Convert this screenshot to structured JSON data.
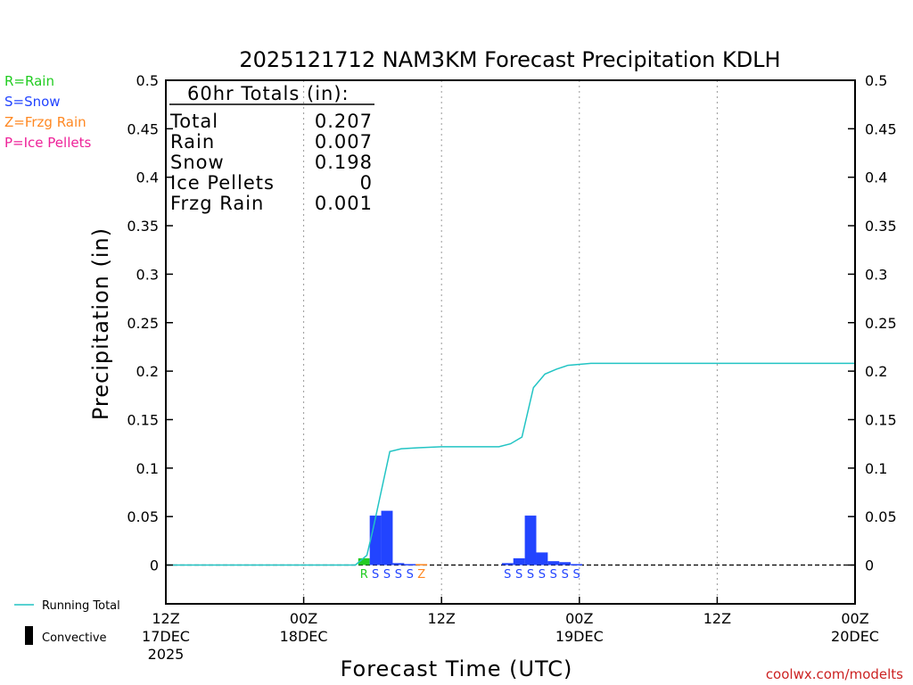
{
  "chart_data": {
    "type": "bar",
    "title": "2025121712 NAM3KM Forecast Precipitation KDLH",
    "xlabel": "Forecast Time (UTC)",
    "ylabel": "Precipitation (in)",
    "ylim": [
      -0.04,
      0.5
    ],
    "yticks": [
      0,
      0.05,
      0.1,
      0.15,
      0.2,
      0.25,
      0.3,
      0.35,
      0.4,
      0.45,
      0.5
    ],
    "ytick_labels": [
      "0",
      "0.05",
      "0.1",
      "0.15",
      "0.2",
      "0.25",
      "0.3",
      "0.35",
      "0.4",
      "0.45",
      "0.5"
    ],
    "xlim_hours": [
      0,
      60
    ],
    "xticks": [
      {
        "hour": 0,
        "line1": "12Z",
        "line2": "17DEC",
        "line3": "2025"
      },
      {
        "hour": 12,
        "line1": "00Z",
        "line2": "18DEC",
        "line3": ""
      },
      {
        "hour": 24,
        "line1": "12Z",
        "line2": "",
        "line3": ""
      },
      {
        "hour": 36,
        "line1": "00Z",
        "line2": "19DEC",
        "line3": ""
      },
      {
        "hour": 48,
        "line1": "12Z",
        "line2": "",
        "line3": ""
      },
      {
        "hour": 60,
        "line1": "00Z",
        "line2": "20DEC",
        "line3": ""
      }
    ],
    "grid_vertical_hours": [
      12,
      24,
      36,
      48
    ],
    "bars": [
      {
        "hour": 17.25,
        "value": 0.007,
        "type": "R",
        "color": "#22cc22"
      },
      {
        "hour": 18.25,
        "value": 0.051,
        "type": "S",
        "color": "#2244ff"
      },
      {
        "hour": 19.25,
        "value": 0.056,
        "type": "S",
        "color": "#2244ff"
      },
      {
        "hour": 20.25,
        "value": 0.002,
        "type": "S",
        "color": "#2244ff"
      },
      {
        "hour": 21.25,
        "value": 0.001,
        "type": "S",
        "color": "#2244ff"
      },
      {
        "hour": 22.25,
        "value": 0.001,
        "type": "Z",
        "color": "#ff8822"
      },
      {
        "hour": 29.75,
        "value": 0.002,
        "type": "S",
        "color": "#2244ff"
      },
      {
        "hour": 30.75,
        "value": 0.007,
        "type": "S",
        "color": "#2244ff"
      },
      {
        "hour": 31.75,
        "value": 0.051,
        "type": "S",
        "color": "#2244ff"
      },
      {
        "hour": 32.75,
        "value": 0.013,
        "type": "S",
        "color": "#2244ff"
      },
      {
        "hour": 33.75,
        "value": 0.004,
        "type": "S",
        "color": "#2244ff"
      },
      {
        "hour": 34.75,
        "value": 0.003,
        "type": "S",
        "color": "#2244ff"
      },
      {
        "hour": 35.75,
        "value": 0.001,
        "type": "S",
        "color": "#2244ff"
      }
    ],
    "running_total": {
      "name": "Running Total",
      "color": "#22c4c4",
      "x": [
        0,
        16.5,
        17.5,
        18,
        19.5,
        20.5,
        22,
        24,
        28,
        29,
        30,
        31,
        32,
        33,
        34,
        35,
        36,
        37,
        60
      ],
      "y": [
        0,
        0,
        0.01,
        0.035,
        0.117,
        0.12,
        0.121,
        0.122,
        0.122,
        0.122,
        0.125,
        0.132,
        0.183,
        0.197,
        0.202,
        0.206,
        0.207,
        0.208,
        0.208
      ]
    },
    "ptype_markers": [
      {
        "hour": 17.25,
        "letter": "R",
        "color": "#22cc22"
      },
      {
        "hour": 18.25,
        "letter": "S",
        "color": "#2244ff"
      },
      {
        "hour": 19.25,
        "letter": "S",
        "color": "#2244ff"
      },
      {
        "hour": 20.25,
        "letter": "S",
        "color": "#2244ff"
      },
      {
        "hour": 21.25,
        "letter": "S",
        "color": "#2244ff"
      },
      {
        "hour": 22.25,
        "letter": "Z",
        "color": "#ff8822"
      },
      {
        "hour": 29.75,
        "letter": "S",
        "color": "#2244ff"
      },
      {
        "hour": 30.75,
        "letter": "S",
        "color": "#2244ff"
      },
      {
        "hour": 31.75,
        "letter": "S",
        "color": "#2244ff"
      },
      {
        "hour": 32.75,
        "letter": "S",
        "color": "#2244ff"
      },
      {
        "hour": 33.75,
        "letter": "S",
        "color": "#2244ff"
      },
      {
        "hour": 34.75,
        "letter": "S",
        "color": "#2244ff"
      },
      {
        "hour": 35.75,
        "letter": "S",
        "color": "#2244ff"
      }
    ],
    "totals_box": {
      "header": "60hr Totals (in):",
      "rows": [
        {
          "label": "Total",
          "value": "0.207"
        },
        {
          "label": "Rain",
          "value": "0.007"
        },
        {
          "label": "Snow",
          "value": "0.198"
        },
        {
          "label": "Ice Pellets",
          "value": "0"
        },
        {
          "label": "Frzg Rain",
          "value": "0.001"
        }
      ]
    },
    "ptype_legend": [
      {
        "text": "R=Rain",
        "color": "#22cc22"
      },
      {
        "text": "S=Snow",
        "color": "#2244ff"
      },
      {
        "text": "Z=Frzg Rain",
        "color": "#ff8822"
      },
      {
        "text": "P=Ice Pellets",
        "color": "#ee2299"
      }
    ],
    "bottom_legend": {
      "running_total_label": "Running Total",
      "convective_label": "Convective",
      "running_total_color": "#22c4c4",
      "convective_color": "#000000"
    }
  },
  "credit": "coolwx.com/modelts"
}
